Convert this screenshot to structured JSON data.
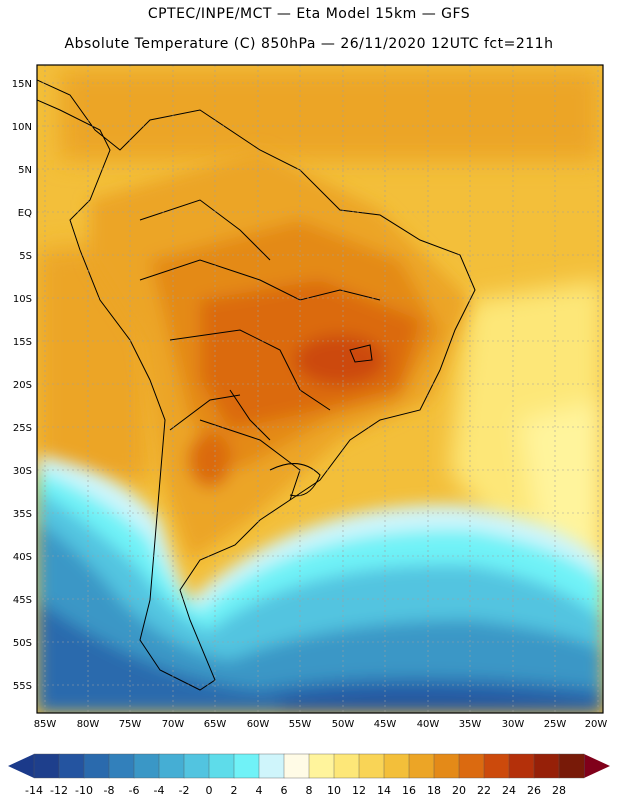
{
  "header": {
    "line1": "CPTEC/INPE/MCT —  Eta Model 15km — GFS",
    "line2": "Absolute Temperature (C) 850hPa — 26/11/2020 12UTC fct=211h"
  },
  "map": {
    "lat_labels": [
      "15N",
      "10N",
      "5N",
      "EQ",
      "5S",
      "10S",
      "15S",
      "20S",
      "25S",
      "30S",
      "35S",
      "40S",
      "45S",
      "50S",
      "55S"
    ],
    "lon_labels": [
      "85W",
      "80W",
      "75W",
      "70W",
      "65W",
      "60W",
      "55W",
      "50W",
      "45W",
      "40W",
      "35W",
      "30W",
      "25W",
      "20W"
    ]
  },
  "legend": {
    "ticks": [
      "-14",
      "-12",
      "-10",
      "-8",
      "-6",
      "-4",
      "-2",
      "0",
      "2",
      "4",
      "6",
      "8",
      "10",
      "12",
      "14",
      "16",
      "18",
      "20",
      "22",
      "24",
      "26",
      "28"
    ],
    "colors": [
      "#1e3f8c",
      "#2454a0",
      "#2a6aad",
      "#3280bb",
      "#3a97c6",
      "#45aed4",
      "#52c4e0",
      "#5edcea",
      "#70f2f7",
      "#cff5fb",
      "#fffbe6",
      "#fff49c",
      "#fde778",
      "#f9d456",
      "#f3bf3a",
      "#eca526",
      "#e48a18",
      "#db6a10",
      "#cc4a0c",
      "#b4300a",
      "#962008",
      "#781a08"
    ],
    "under_color": "#1b3a8a",
    "over_color": "#80001a"
  }
}
